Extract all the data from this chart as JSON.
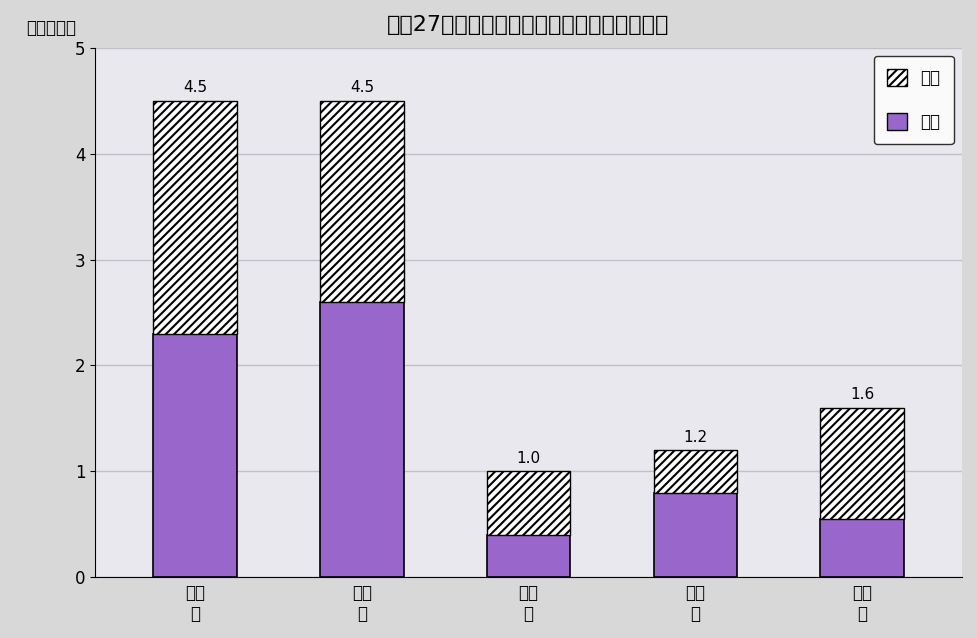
{
  "title": "平成27年の市郡別年間商品販売額（鳥取県）",
  "ylabel": "（千億円）",
  "categories": [
    "鳥取\n市",
    "米子\n市",
    "倉吉\n市",
    "境港\n市",
    "郡部\n計"
  ],
  "wholesale": [
    2.3,
    2.6,
    0.4,
    0.8,
    0.55
  ],
  "total": [
    4.5,
    4.5,
    1.0,
    1.2,
    1.6
  ],
  "bar_color_wholesale": "#9966cc",
  "bar_color_retail_face": "#ffffff",
  "bar_color_retail_hatch_color": "#ee2266",
  "background_color": "#d8d8d8",
  "plot_bg_color": "#e8e8ee",
  "grid_color": "#c0c0c8",
  "ylim": [
    0,
    5
  ],
  "yticks": [
    0,
    1,
    2,
    3,
    4,
    5
  ],
  "title_fontsize": 16,
  "label_fontsize": 12,
  "tick_fontsize": 12,
  "annot_fontsize": 11,
  "bar_width": 0.5,
  "label_values": [
    "4.5",
    "4.5",
    "1.0",
    "1.2",
    "1.6"
  ]
}
